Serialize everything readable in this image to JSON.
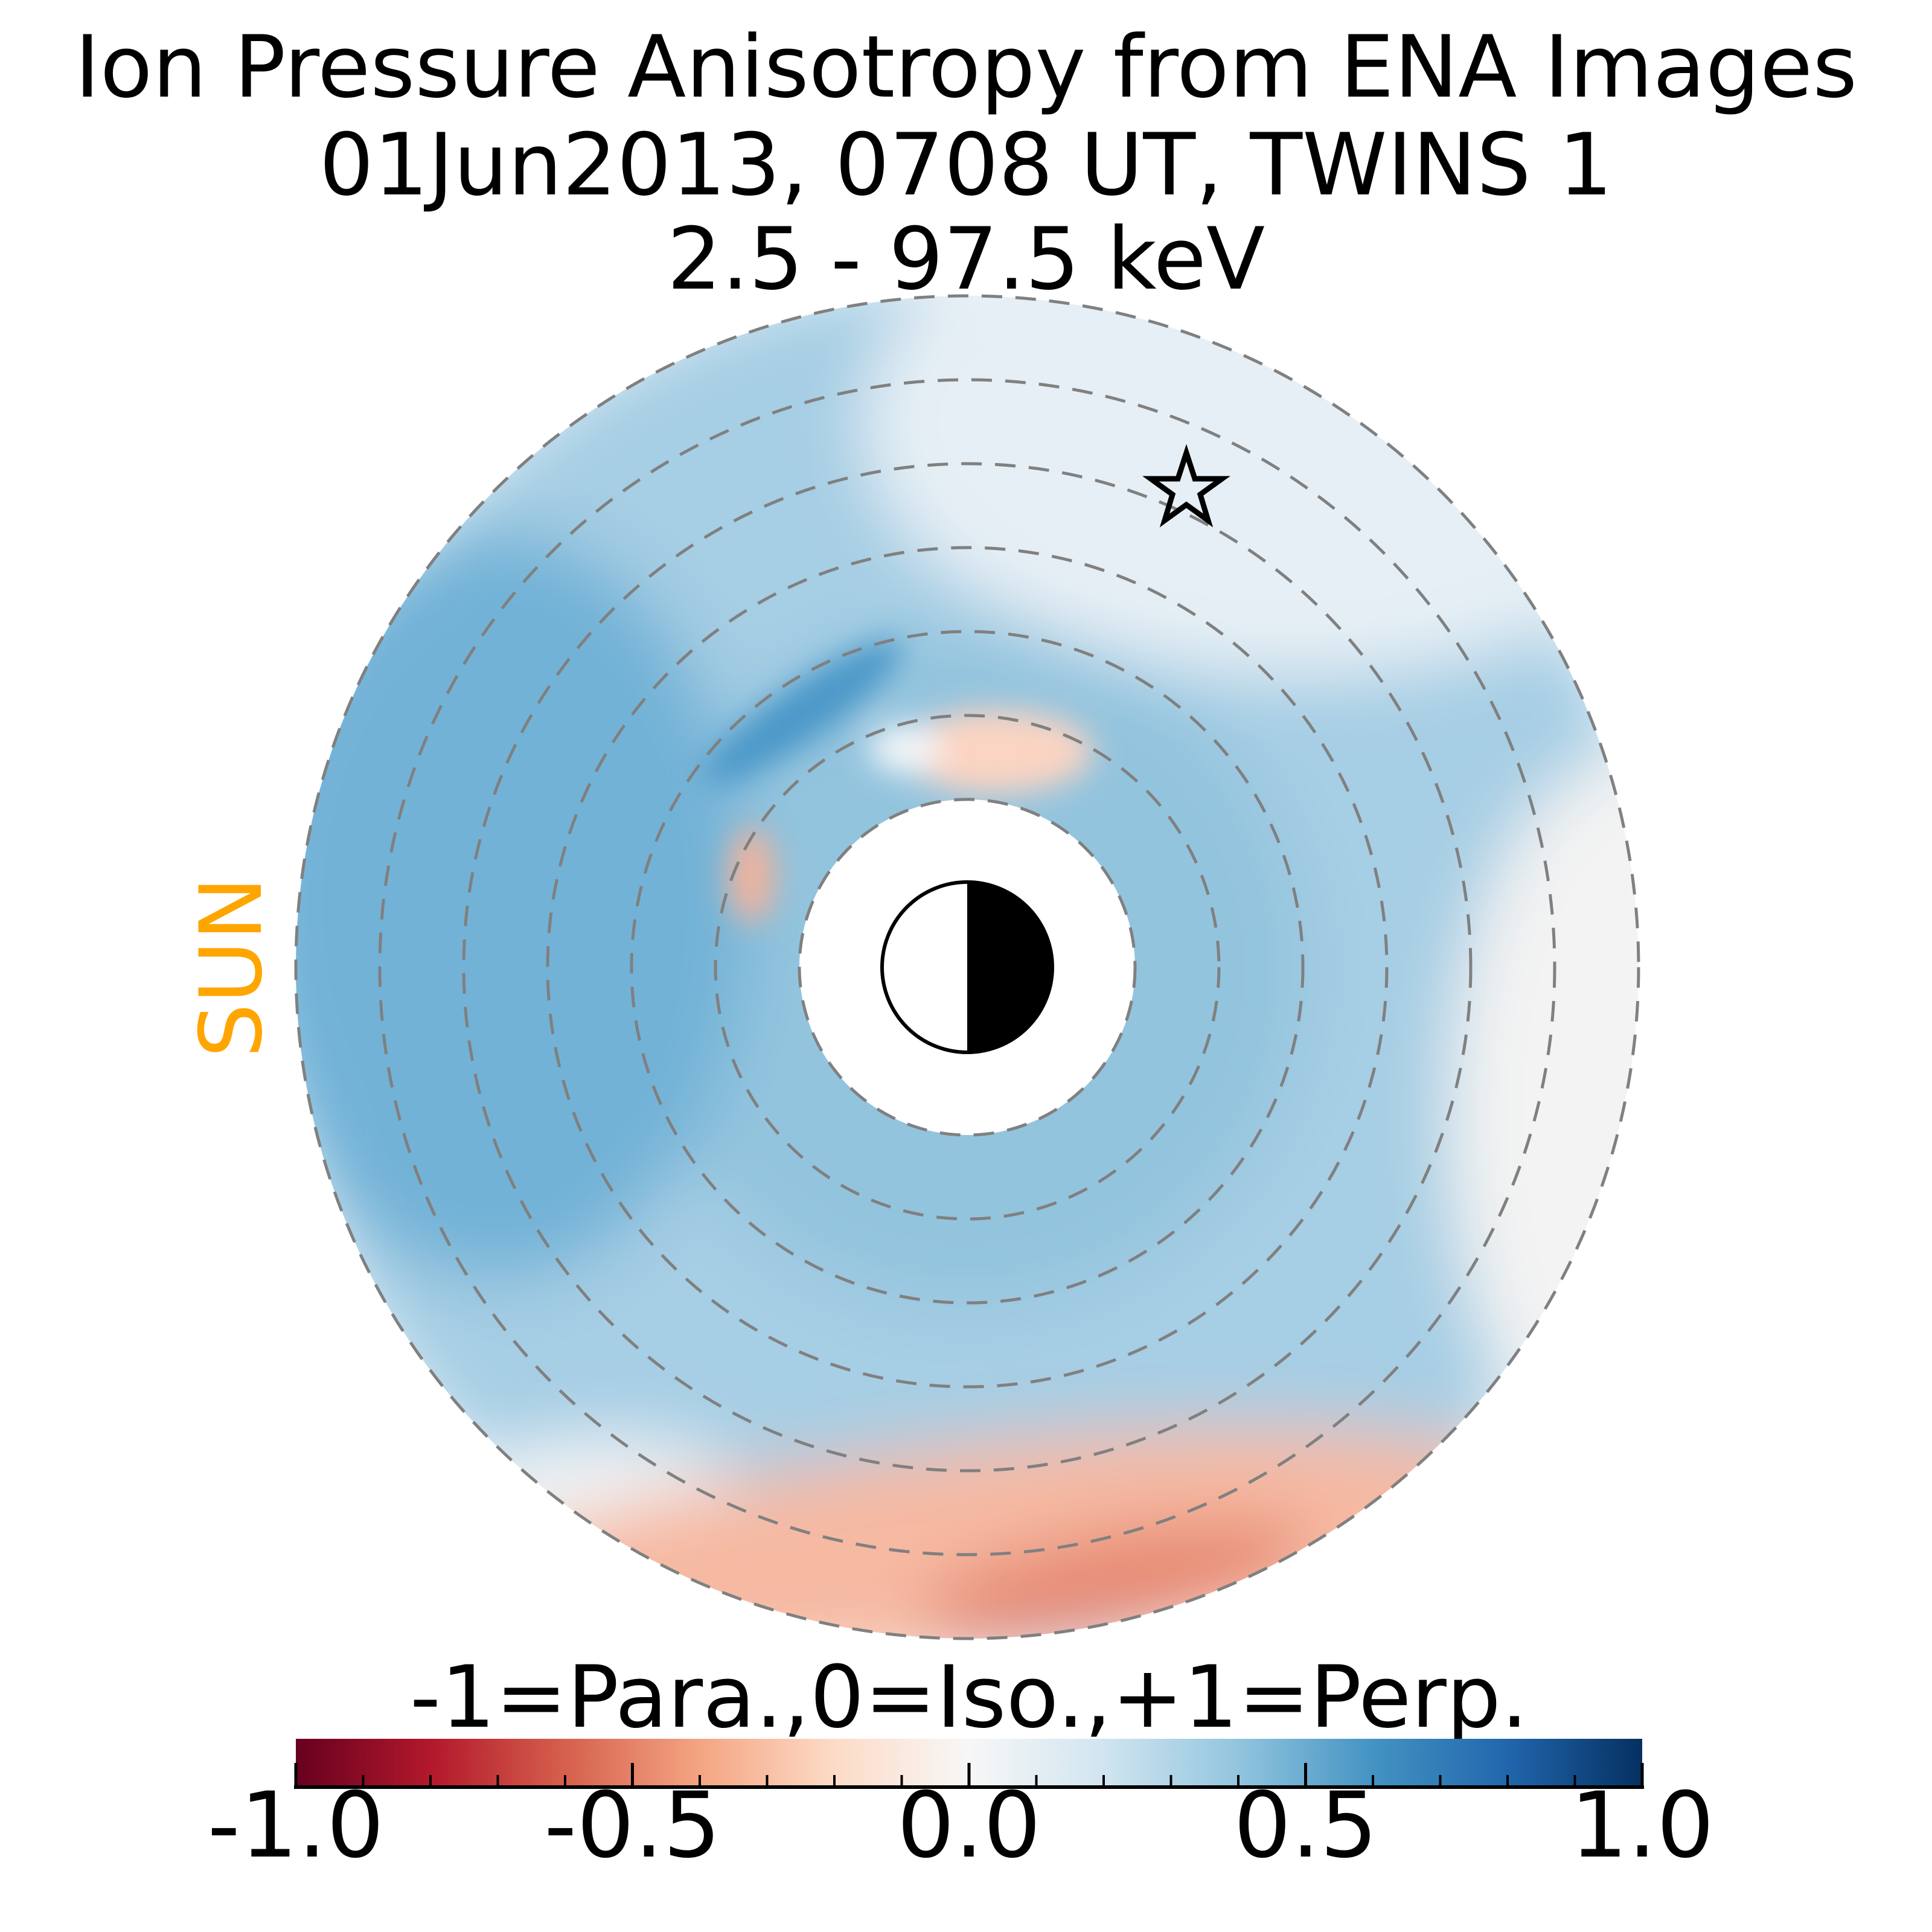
{
  "chart_data": {
    "type": "heatmap",
    "title": [
      "Ion Pressure Anisotropy from  ENA Images",
      "01Jun2013, 0708 UT,  TWINS 1",
      "2.5 - 97.5 keV"
    ],
    "sun_label": "SUN",
    "colorbar": {
      "label": "-1=Para.,0=Iso.,+1=Perp.",
      "range": [
        -1.0,
        1.0
      ],
      "ticks": [
        "-1.0",
        "-0.5",
        "0.0",
        "0.5",
        "1.0"
      ],
      "tick_values": [
        -1.0,
        -0.5,
        0.0,
        0.5,
        1.0
      ],
      "minor_step": 0.1,
      "colormap": "RdBu",
      "stops": [
        "#67001f",
        "#b2182b",
        "#d6604d",
        "#f4a582",
        "#fddbc7",
        "#f7f7f7",
        "#d1e5f0",
        "#92c5de",
        "#4393c3",
        "#2166ac",
        "#053061"
      ]
    },
    "rings_re": [
      2,
      3,
      4,
      5,
      6,
      7,
      8
    ],
    "data_range_re": [
      2,
      8
    ],
    "markers": {
      "spacecraft": "star-icon",
      "earth": "earth-day-night-icon"
    },
    "summary": "Mostly positive (perpendicular, 0.2-0.5) anisotropy; negative (parallel, to about -0.4) band on the night side at 6-8 Re"
  }
}
